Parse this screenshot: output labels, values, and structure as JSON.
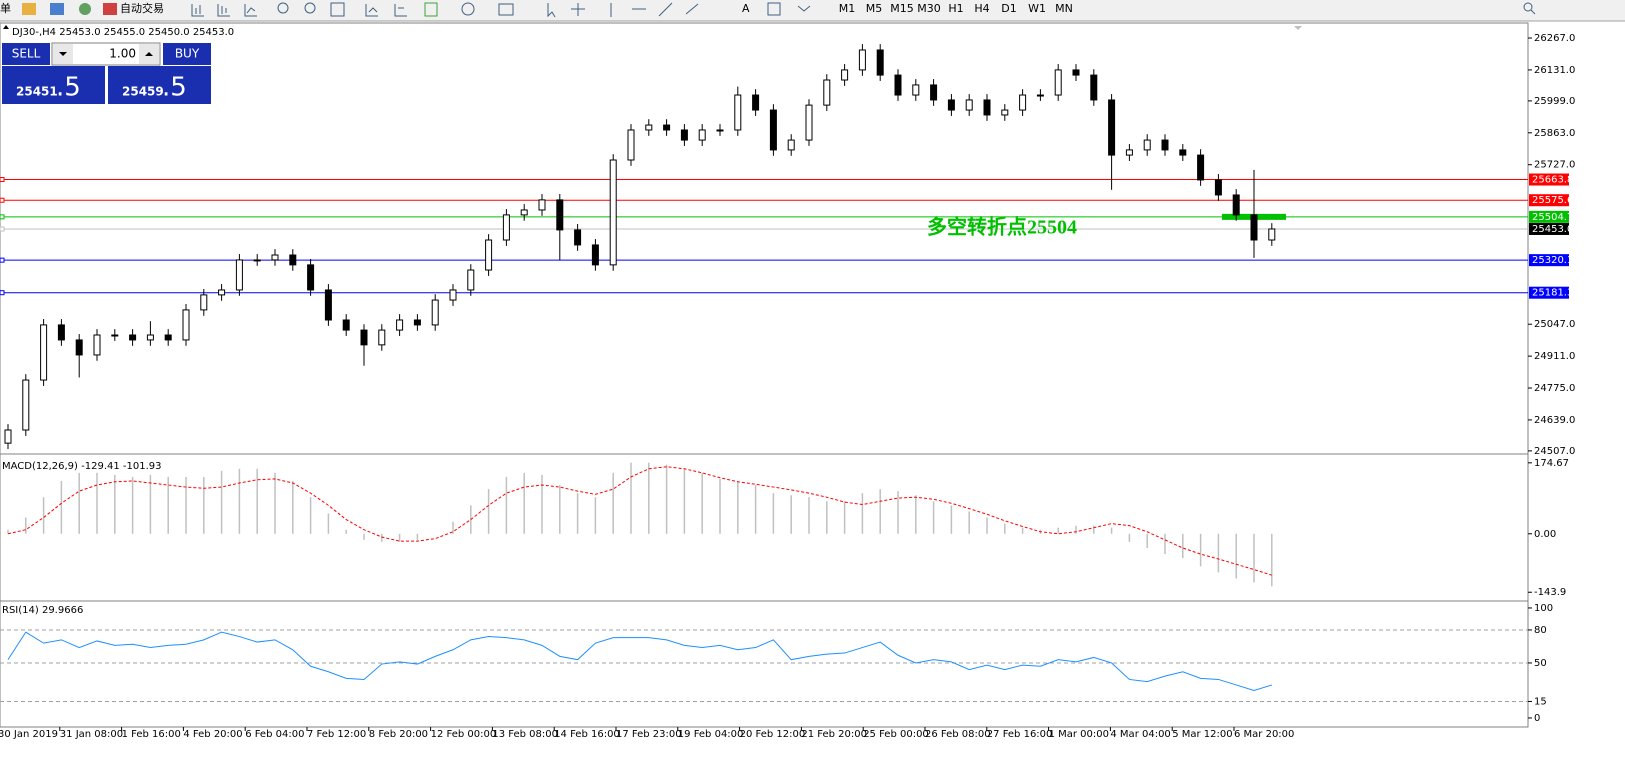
{
  "toolbar": {
    "menu_label": "单",
    "auto_trade": "自动交易",
    "timeframes": [
      "M1",
      "M5",
      "M15",
      "M30",
      "H1",
      "H4",
      "D1",
      "W1",
      "MN"
    ]
  },
  "trade_panel": {
    "sell": "SELL",
    "buy": "BUY",
    "lot": "1.00",
    "bid_main": "25451",
    "bid_frac": ".5",
    "ask_main": "25459",
    "ask_frac": ".5"
  },
  "time_axis": [
    "30 Jan 2019",
    "31 Jan 08:00",
    "1 Feb 16:00",
    "4 Feb 20:00",
    "6 Feb 04:00",
    "7 Feb 12:00",
    "8 Feb 20:00",
    "12 Feb 00:00",
    "13 Feb 08:00",
    "14 Feb 16:00",
    "17 Feb 23:00",
    "19 Feb 04:00",
    "20 Feb 12:00",
    "21 Feb 20:00",
    "25 Feb 00:00",
    "26 Feb 08:00",
    "27 Feb 16:00",
    "1 Mar 00:00",
    "4 Mar 04:00",
    "5 Mar 12:00",
    "6 Mar 20:00"
  ],
  "chart_data": [
    {
      "type": "candlestick",
      "title": "DJ30-,H4  25453.0 25455.0 25450.0 25453.0",
      "open": [
        24540,
        24596,
        24809,
        25044,
        24980,
        24916,
        25001,
        25001,
        24980,
        25001,
        24980,
        25108,
        25172,
        25193,
        25321,
        25321,
        25342,
        25300,
        25193,
        25065,
        25022,
        24959,
        25022,
        25065,
        25044,
        25150,
        25193,
        25278,
        25406,
        25513,
        25534,
        25577,
        25449,
        25385,
        25300,
        25747,
        25875,
        25896,
        25875,
        25832,
        25875,
        25875,
        26024,
        25960,
        25790,
        25832,
        25981,
        26088,
        26131,
        26216,
        26109,
        26024,
        26067,
        26003,
        25960,
        26003,
        25939,
        25960,
        26024,
        26024,
        26131,
        26109,
        26003,
        25768,
        25790,
        25832,
        25790,
        25768,
        25662,
        25598,
        25513,
        25406
      ],
      "high": [
        24621,
        24834,
        25069,
        25069,
        25005,
        25026,
        25026,
        25026,
        25060,
        25026,
        25133,
        25197,
        25218,
        25346,
        25346,
        25367,
        25367,
        25325,
        25218,
        25090,
        25047,
        25047,
        25090,
        25090,
        25175,
        25218,
        25303,
        25431,
        25538,
        25559,
        25602,
        25602,
        25474,
        25410,
        25772,
        25900,
        25921,
        25921,
        25900,
        25900,
        25900,
        26060,
        26049,
        25985,
        25857,
        26006,
        26113,
        26156,
        26241,
        26241,
        26134,
        26092,
        26092,
        26028,
        26028,
        26028,
        25985,
        26049,
        26049,
        26156,
        26156,
        26134,
        26028,
        25815,
        25857,
        25857,
        25815,
        25793,
        25687,
        25623,
        25705,
        25478
      ],
      "low": [
        24515,
        24571,
        24784,
        24955,
        24820,
        24891,
        24976,
        24955,
        24955,
        24955,
        24955,
        25083,
        25147,
        25168,
        25296,
        25296,
        25275,
        25168,
        25040,
        24997,
        24870,
        24934,
        24997,
        25019,
        25019,
        25125,
        25168,
        25253,
        25381,
        25488,
        25509,
        25320,
        25360,
        25275,
        25275,
        25722,
        25850,
        25850,
        25807,
        25807,
        25850,
        25850,
        25935,
        25765,
        25765,
        25807,
        25956,
        26063,
        26106,
        26084,
        25999,
        25999,
        25978,
        25935,
        25935,
        25914,
        25914,
        25935,
        25999,
        25999,
        26084,
        25978,
        25620,
        25743,
        25765,
        25765,
        25743,
        25637,
        25573,
        25488,
        25330,
        25381
      ],
      "close": [
        24596,
        24809,
        25044,
        24980,
        24916,
        25001,
        25001,
        24980,
        25001,
        24980,
        25108,
        25172,
        25193,
        25321,
        25321,
        25342,
        25300,
        25193,
        25065,
        25022,
        24959,
        25022,
        25065,
        25044,
        25150,
        25193,
        25278,
        25406,
        25513,
        25534,
        25577,
        25449,
        25385,
        25300,
        25747,
        25875,
        25896,
        25875,
        25832,
        25875,
        25875,
        26024,
        25960,
        25790,
        25832,
        25981,
        26088,
        26131,
        26216,
        26109,
        26024,
        26067,
        26003,
        25960,
        26003,
        25939,
        25960,
        26024,
        26024,
        26131,
        26109,
        26003,
        25768,
        25790,
        25832,
        25790,
        25768,
        25662,
        25598,
        25513,
        25406,
        25453
      ],
      "ylim": [
        24498,
        26314
      ],
      "yticks": [
        {
          "value": 26267,
          "label": "26267.0"
        },
        {
          "value": 26131,
          "label": "26131.0"
        },
        {
          "value": 25999,
          "label": "25999.0"
        },
        {
          "value": 25863,
          "label": "25863.0"
        },
        {
          "value": 25727,
          "label": "25727.0"
        },
        {
          "value": 25047,
          "label": "25047.0"
        },
        {
          "value": 24911,
          "label": "24911.0"
        },
        {
          "value": 24775,
          "label": "24775.0"
        },
        {
          "value": 24639,
          "label": "24639.0"
        },
        {
          "value": 24507,
          "label": "24507.0"
        }
      ],
      "levels": [
        {
          "value": 25663.8,
          "color": "#ff0000"
        },
        {
          "value": 25575.6,
          "color": "#ff0000"
        },
        {
          "value": 25504.7,
          "color": "#00c000"
        },
        {
          "value": {
            "value": 25453,
            "label": "25453.0"
          },
          "color": "#c0c0c0"
        },
        {
          "value": 25320.1,
          "color": "#0000ff"
        },
        {
          "value": 25181.3,
          "color": "#0000ff"
        }
      ],
      "annotation": "多空转折点25504"
    },
    {
      "type": "macd",
      "title": "MACD(12,26,9) -129.41 -101.93",
      "histogram": [
        10,
        40,
        90,
        130,
        150,
        150,
        145,
        140,
        145,
        140,
        140,
        140,
        155,
        160,
        160,
        150,
        130,
        90,
        50,
        10,
        -15,
        -20,
        -20,
        -15,
        0,
        30,
        70,
        110,
        140,
        150,
        145,
        120,
        100,
        90,
        150,
        175,
        175,
        170,
        160,
        150,
        135,
        130,
        120,
        100,
        95,
        90,
        80,
        80,
        100,
        110,
        105,
        95,
        80,
        70,
        55,
        40,
        25,
        15,
        10,
        15,
        20,
        20,
        15,
        -20,
        -35,
        -50,
        -60,
        -80,
        -95,
        -110,
        -120,
        -129.41
      ],
      "signal": [
        0,
        10,
        40,
        75,
        105,
        120,
        128,
        130,
        125,
        120,
        115,
        112,
        115,
        125,
        133,
        135,
        125,
        100,
        70,
        35,
        10,
        -8,
        -18,
        -18,
        -12,
        5,
        35,
        70,
        100,
        115,
        120,
        115,
        105,
        97,
        110,
        140,
        160,
        165,
        160,
        150,
        138,
        128,
        122,
        115,
        108,
        100,
        90,
        78,
        72,
        80,
        88,
        90,
        85,
        75,
        62,
        48,
        32,
        18,
        5,
        0,
        5,
        15,
        25,
        20,
        5,
        -15,
        -35,
        -50,
        -62,
        -75,
        -88,
        -101.93
      ],
      "histogram_color": "#c0c0c0",
      "signal_color": "#ff0000",
      "ylim": [
        -163,
        189
      ],
      "yticks": [
        {
          "value": 174.67,
          "label": "174.67"
        },
        {
          "value": 0,
          "label": "0.00"
        },
        {
          "value": -143.9,
          "label": "-143.9"
        }
      ]
    },
    {
      "type": "rsi",
      "title": "RSI(14) 29.9666",
      "values": [
        53,
        78,
        68,
        71,
        64,
        70,
        66,
        67,
        64,
        66,
        67,
        71,
        78,
        74,
        69,
        71,
        62,
        47,
        42,
        36,
        35,
        49,
        51,
        49,
        56,
        62,
        71,
        74,
        73,
        71,
        66,
        56,
        53,
        68,
        73,
        73,
        73,
        71,
        66,
        64,
        66,
        62,
        64,
        71,
        53,
        56,
        58,
        59,
        64,
        69,
        57,
        50,
        53,
        51,
        44,
        48,
        44,
        48,
        47,
        53,
        51,
        55,
        50,
        35,
        33,
        38,
        42,
        36,
        35,
        30,
        25,
        29.97
      ],
      "color": "#1e90ff",
      "ylim": [
        -6.4,
        104.5
      ],
      "yticks": [
        100,
        80,
        50,
        15,
        0
      ],
      "levels": [
        80,
        50,
        15
      ]
    }
  ]
}
